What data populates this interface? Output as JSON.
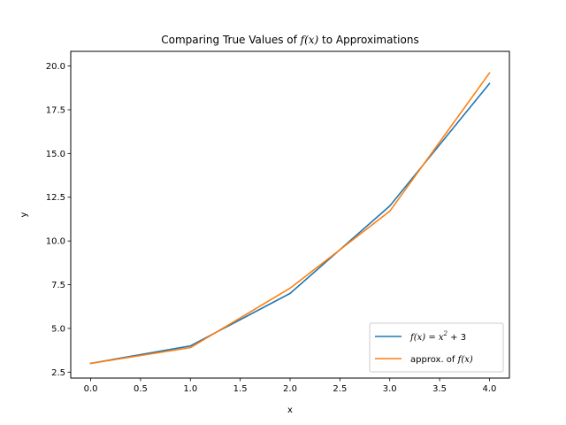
{
  "chart_data": {
    "type": "line",
    "title_prefix": "Comparing True Values of ",
    "title_math": "f(x)",
    "title_suffix": " to Approximations",
    "xlabel": "x",
    "ylabel": "y",
    "xlim": [
      -0.2,
      4.2
    ],
    "ylim": [
      2.16,
      20.84
    ],
    "xticks": [
      0.0,
      0.5,
      1.0,
      1.5,
      2.0,
      2.5,
      3.0,
      3.5,
      4.0
    ],
    "yticks": [
      2.5,
      5.0,
      7.5,
      10.0,
      12.5,
      15.0,
      17.5,
      20.0
    ],
    "grid": false,
    "legend_position": "lower right",
    "series": [
      {
        "name": "f(x) = x^2 + 3",
        "legend_math": "f(x) = x",
        "legend_sup": "2",
        "legend_tail": " + 3",
        "color": "#1f77b4",
        "x": [
          0,
          1,
          2,
          3,
          4
        ],
        "y": [
          3.0,
          4.0,
          7.0,
          12.0,
          19.0
        ]
      },
      {
        "name": "approx. of f(x)",
        "legend_prefix": "approx. of ",
        "legend_math": "f(x)",
        "color": "#ff7f0e",
        "x": [
          0,
          1,
          2,
          3,
          4
        ],
        "y": [
          3.0,
          3.9,
          7.3,
          11.7,
          19.6
        ]
      }
    ]
  }
}
